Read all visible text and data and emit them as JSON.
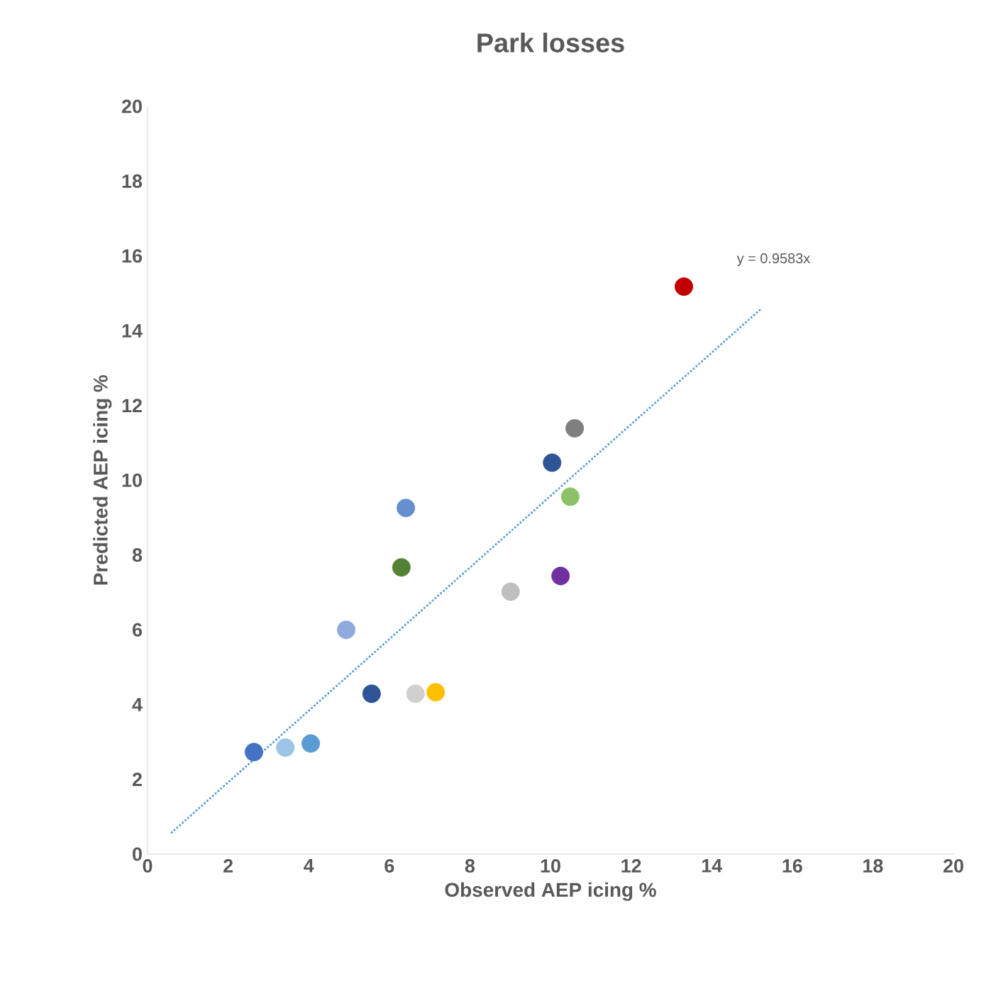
{
  "chart_data": {
    "type": "scatter",
    "title": "Park losses",
    "xlabel": "Observed AEP icing %",
    "ylabel": "Predicted AEP icing %",
    "xlim": [
      0,
      20
    ],
    "ylim": [
      0,
      20
    ],
    "xticks": [
      0,
      2,
      4,
      6,
      8,
      10,
      12,
      14,
      16,
      18,
      20
    ],
    "yticks": [
      0,
      2,
      4,
      6,
      8,
      10,
      12,
      14,
      16,
      18,
      20
    ],
    "grid": false,
    "annotations": [
      "y = 0.9583x"
    ],
    "series": [
      {
        "marker": "circle",
        "x": [
          2.64,
          3.42,
          4.05,
          4.93,
          5.56,
          6.41,
          6.3,
          6.65,
          7.15,
          9.01,
          10.04,
          10.25,
          10.49,
          10.6,
          13.31
        ],
        "values": [
          2.73,
          2.85,
          2.96,
          6.0,
          4.29,
          9.26,
          7.67,
          4.29,
          4.33,
          7.02,
          10.47,
          7.44,
          9.56,
          11.39,
          15.18
        ],
        "colors": [
          "#4472c4",
          "#9dc3e6",
          "#5b9bd5",
          "#8faadc",
          "#2f5597",
          "#698ed0",
          "#548235",
          "#d0d0d0",
          "#ffc000",
          "#bfbfbf",
          "#2f5597",
          "#7030a0",
          "#8cc168",
          "#7f7f7f",
          "#c00000"
        ]
      },
      {
        "type": "line",
        "marker": "none",
        "line_style": "dotted",
        "color": "#5b9bd5",
        "x": [
          0.6,
          15.25
        ],
        "values": [
          0.58,
          14.61
        ]
      }
    ]
  }
}
